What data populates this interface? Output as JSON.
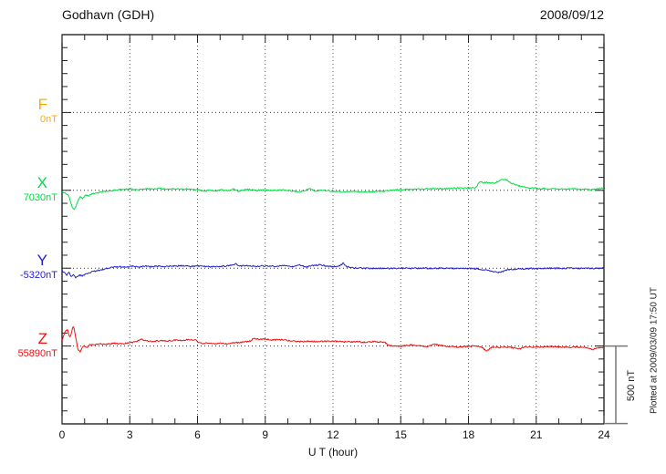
{
  "header": {
    "title": "Godhavn (GDH)",
    "date": "2008/09/12"
  },
  "chart_data": {
    "type": "line",
    "title": "Godhavn (GDH)",
    "date": "2008/09/12",
    "xlabel": "U T (hour)",
    "x_range": [
      0,
      24
    ],
    "x_ticks": [
      0,
      3,
      6,
      9,
      12,
      15,
      18,
      21,
      24
    ],
    "x_minor_step_hours": 1,
    "grid": "dotted vertical gridlines every 3 h; dotted horizontal baseline per component",
    "legend_position": "left margin component labels",
    "scale_bar": {
      "label": "500 nT",
      "nT": 500
    },
    "note": "Plotted at 2009/03/09 17:50 UT",
    "series": [
      {
        "name": "F",
        "baseline_label": "0nT",
        "baseline_nT": 0,
        "color": "#FFAA00",
        "points_hour_dnT": []
      },
      {
        "name": "X",
        "baseline_label": "7030nT",
        "baseline_nT": 7030,
        "color": "#00DD44",
        "points_hour_dnT": [
          [
            0,
            -12
          ],
          [
            0.15,
            -18
          ],
          [
            0.3,
            -35
          ],
          [
            0.45,
            -110
          ],
          [
            0.55,
            -124
          ],
          [
            0.65,
            -90
          ],
          [
            0.8,
            -40
          ],
          [
            0.9,
            -55
          ],
          [
            1.05,
            -30
          ],
          [
            1.2,
            -35
          ],
          [
            1.4,
            -20
          ],
          [
            1.7,
            -12
          ],
          [
            2,
            -6
          ],
          [
            2.3,
            0
          ],
          [
            2.6,
            6
          ],
          [
            3,
            8
          ],
          [
            3.3,
            4
          ],
          [
            3.6,
            10
          ],
          [
            4,
            8
          ],
          [
            4.3,
            12
          ],
          [
            4.6,
            8
          ],
          [
            5,
            10
          ],
          [
            5.3,
            6
          ],
          [
            5.6,
            10
          ],
          [
            6,
            4
          ],
          [
            6.3,
            -6
          ],
          [
            6.5,
            2
          ],
          [
            6.8,
            -4
          ],
          [
            7,
            4
          ],
          [
            7.3,
            -2
          ],
          [
            7.6,
            8
          ],
          [
            7.8,
            -8
          ],
          [
            8,
            2
          ],
          [
            8.3,
            6
          ],
          [
            8.6,
            0
          ],
          [
            9,
            2
          ],
          [
            9.4,
            0
          ],
          [
            9.8,
            4
          ],
          [
            10.2,
            -4
          ],
          [
            10.5,
            -12
          ],
          [
            10.7,
            -2
          ],
          [
            11,
            10
          ],
          [
            11.2,
            -6
          ],
          [
            11.5,
            2
          ],
          [
            11.8,
            -4
          ],
          [
            12.2,
            -8
          ],
          [
            12.6,
            -10
          ],
          [
            13,
            -8
          ],
          [
            13.4,
            -12
          ],
          [
            13.8,
            -8
          ],
          [
            14.2,
            -6
          ],
          [
            14.6,
            0
          ],
          [
            15,
            4
          ],
          [
            15.5,
            6
          ],
          [
            16,
            8
          ],
          [
            16.5,
            10
          ],
          [
            17,
            12
          ],
          [
            17.5,
            14
          ],
          [
            18,
            16
          ],
          [
            18.3,
            14
          ],
          [
            18.5,
            55
          ],
          [
            18.65,
            48
          ],
          [
            18.8,
            52
          ],
          [
            19,
            45
          ],
          [
            19.2,
            50
          ],
          [
            19.4,
            65
          ],
          [
            19.6,
            72
          ],
          [
            19.8,
            55
          ],
          [
            20,
            40
          ],
          [
            20.2,
            30
          ],
          [
            20.5,
            20
          ],
          [
            20.7,
            12
          ],
          [
            20.9,
            18
          ],
          [
            21.1,
            8
          ],
          [
            21.4,
            12
          ],
          [
            21.8,
            10
          ],
          [
            22.2,
            8
          ],
          [
            22.6,
            10
          ],
          [
            23,
            8
          ],
          [
            23.4,
            6
          ],
          [
            23.7,
            8
          ],
          [
            23.9,
            14
          ],
          [
            24,
            10
          ]
        ]
      },
      {
        "name": "Y",
        "baseline_label": "-5320nT",
        "baseline_nT": -5320,
        "color": "#2222CC",
        "points_hour_dnT": [
          [
            0,
            -12
          ],
          [
            0.1,
            -30
          ],
          [
            0.2,
            -45
          ],
          [
            0.3,
            -25
          ],
          [
            0.4,
            -55
          ],
          [
            0.5,
            -40
          ],
          [
            0.6,
            -60
          ],
          [
            0.75,
            -45
          ],
          [
            0.9,
            -50
          ],
          [
            1.1,
            -35
          ],
          [
            1.3,
            -25
          ],
          [
            1.6,
            -15
          ],
          [
            1.9,
            -5
          ],
          [
            2.2,
            5
          ],
          [
            2.5,
            10
          ],
          [
            2.8,
            8
          ],
          [
            3.1,
            12
          ],
          [
            3.4,
            8
          ],
          [
            3.7,
            14
          ],
          [
            4,
            10
          ],
          [
            4.3,
            14
          ],
          [
            4.6,
            10
          ],
          [
            5,
            14
          ],
          [
            5.4,
            16
          ],
          [
            5.8,
            12
          ],
          [
            6.2,
            14
          ],
          [
            6.6,
            10
          ],
          [
            7,
            12
          ],
          [
            7.4,
            16
          ],
          [
            7.7,
            28
          ],
          [
            7.9,
            14
          ],
          [
            8.2,
            16
          ],
          [
            8.6,
            12
          ],
          [
            9,
            14
          ],
          [
            9.4,
            12
          ],
          [
            9.8,
            16
          ],
          [
            10.2,
            10
          ],
          [
            10.5,
            20
          ],
          [
            10.8,
            8
          ],
          [
            11.1,
            16
          ],
          [
            11.4,
            22
          ],
          [
            11.7,
            12
          ],
          [
            12,
            10
          ],
          [
            12.3,
            14
          ],
          [
            12.45,
            32
          ],
          [
            12.6,
            10
          ],
          [
            12.8,
            2
          ],
          [
            13.2,
            0
          ],
          [
            13.6,
            -2
          ],
          [
            14,
            0
          ],
          [
            14.5,
            -2
          ],
          [
            15,
            0
          ],
          [
            15.5,
            -2
          ],
          [
            16,
            0
          ],
          [
            16.5,
            -2
          ],
          [
            17,
            0
          ],
          [
            17.5,
            -2
          ],
          [
            18,
            -2
          ],
          [
            18.4,
            -4
          ],
          [
            18.7,
            -10
          ],
          [
            19,
            -18
          ],
          [
            19.3,
            -28
          ],
          [
            19.5,
            -22
          ],
          [
            19.7,
            -12
          ],
          [
            20,
            -6
          ],
          [
            20.4,
            -4
          ],
          [
            20.8,
            -2
          ],
          [
            21.2,
            -4
          ],
          [
            21.6,
            0
          ],
          [
            22,
            -2
          ],
          [
            22.4,
            0
          ],
          [
            22.8,
            -2
          ],
          [
            23.2,
            0
          ],
          [
            23.6,
            -2
          ],
          [
            24,
            0
          ]
        ]
      },
      {
        "name": "Z",
        "baseline_label": "55890nT",
        "baseline_nT": 55890,
        "color": "#EE1111",
        "points_hour_dnT": [
          [
            0,
            40
          ],
          [
            0.15,
            95
          ],
          [
            0.25,
            105
          ],
          [
            0.35,
            50
          ],
          [
            0.5,
            135
          ],
          [
            0.6,
            60
          ],
          [
            0.7,
            -20
          ],
          [
            0.8,
            -38
          ],
          [
            0.95,
            5
          ],
          [
            1.1,
            -10
          ],
          [
            1.25,
            10
          ],
          [
            1.4,
            8
          ],
          [
            1.6,
            15
          ],
          [
            1.8,
            10
          ],
          [
            2,
            12
          ],
          [
            2.3,
            18
          ],
          [
            2.6,
            15
          ],
          [
            3,
            20
          ],
          [
            3.3,
            30
          ],
          [
            3.5,
            45
          ],
          [
            3.7,
            35
          ],
          [
            4,
            30
          ],
          [
            4.3,
            35
          ],
          [
            4.6,
            32
          ],
          [
            5,
            38
          ],
          [
            5.3,
            35
          ],
          [
            5.6,
            42
          ],
          [
            5.9,
            38
          ],
          [
            6.1,
            20
          ],
          [
            6.3,
            15
          ],
          [
            6.5,
            22
          ],
          [
            6.8,
            12
          ],
          [
            7,
            18
          ],
          [
            7.3,
            14
          ],
          [
            7.6,
            20
          ],
          [
            8,
            25
          ],
          [
            8.3,
            30
          ],
          [
            8.5,
            48
          ],
          [
            8.7,
            42
          ],
          [
            9,
            45
          ],
          [
            9.3,
            38
          ],
          [
            9.6,
            42
          ],
          [
            10,
            35
          ],
          [
            10.3,
            30
          ],
          [
            10.6,
            28
          ],
          [
            11,
            32
          ],
          [
            11.3,
            28
          ],
          [
            11.6,
            30
          ],
          [
            12,
            32
          ],
          [
            12.3,
            28
          ],
          [
            12.6,
            26
          ],
          [
            13,
            28
          ],
          [
            13.4,
            24
          ],
          [
            13.8,
            28
          ],
          [
            14.1,
            26
          ],
          [
            14.3,
            24
          ],
          [
            14.45,
            5
          ],
          [
            14.6,
            0
          ],
          [
            15,
            -2
          ],
          [
            15.3,
            4
          ],
          [
            15.6,
            8
          ],
          [
            15.9,
            0
          ],
          [
            16.2,
            -4
          ],
          [
            16.5,
            14
          ],
          [
            16.7,
            4
          ],
          [
            17,
            0
          ],
          [
            17.3,
            -4
          ],
          [
            17.6,
            -6
          ],
          [
            18,
            -2
          ],
          [
            18.3,
            0
          ],
          [
            18.6,
            -8
          ],
          [
            18.8,
            -34
          ],
          [
            19,
            -12
          ],
          [
            19.2,
            -6
          ],
          [
            19.5,
            -10
          ],
          [
            19.8,
            -8
          ],
          [
            20.1,
            -14
          ],
          [
            20.3,
            -18
          ],
          [
            20.5,
            -4
          ],
          [
            20.8,
            -8
          ],
          [
            21.2,
            -6
          ],
          [
            21.6,
            -4
          ],
          [
            22,
            -6
          ],
          [
            22.4,
            -8
          ],
          [
            22.8,
            -6
          ],
          [
            23.2,
            -8
          ],
          [
            23.5,
            -22
          ],
          [
            23.7,
            -12
          ],
          [
            24,
            -8
          ]
        ]
      }
    ]
  }
}
